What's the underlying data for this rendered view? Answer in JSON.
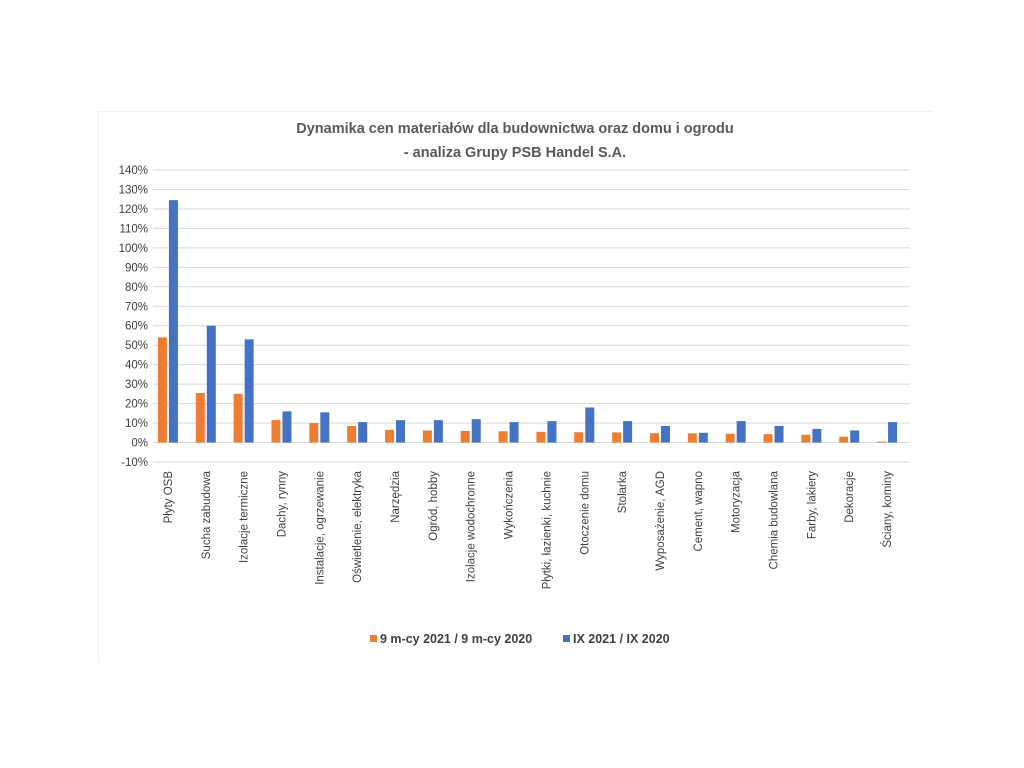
{
  "chart_data": {
    "type": "bar",
    "title": "Dynamika cen materiałów dla budownictwa oraz domu i ogrodu",
    "subtitle": "- analiza Grupy PSB Handel S.A.",
    "xlabel": "",
    "ylabel": "",
    "ylim": [
      -10,
      140
    ],
    "y_ticks": [
      140,
      130,
      120,
      110,
      100,
      90,
      80,
      70,
      60,
      50,
      40,
      30,
      20,
      10,
      0,
      -10
    ],
    "y_tick_labels": [
      "140%",
      "130%",
      "120%",
      "110%",
      "100%",
      "90%",
      "80%",
      "70%",
      "60%",
      "50%",
      "40%",
      "30%",
      "20%",
      "10%",
      "0%",
      "-10%"
    ],
    "grid": true,
    "legend_position": "bottom",
    "categories": [
      "Płyty OSB",
      "Sucha zabudowa",
      "Izolacje termiczne",
      "Dachy, rynny",
      "Instalacje, ogrzewanie",
      "Oświetlenie, elektryka",
      "Narzędzia",
      "Ogród, hobby",
      "Izolacje wodochronne",
      "Wykończenia",
      "Płytki, łazienki, kuchnie",
      "Otoczenie domu",
      "Stolarka",
      "Wyposażenie, AGD",
      "Cement, wapno",
      "Motoryzacja",
      "Chemia budowlana",
      "Farby, lakiery",
      "Dekoracje",
      "Ściany, kominy"
    ],
    "series": [
      {
        "name": "9 m-cy 2021 / 9 m-cy 2020",
        "color": "#ED7D31",
        "values": [
          54,
          25.5,
          25,
          11.5,
          10,
          8.5,
          6.5,
          6.2,
          6,
          5.8,
          5.5,
          5.3,
          5.2,
          4.8,
          4.7,
          4.5,
          4.3,
          4,
          3,
          0.5
        ]
      },
      {
        "name": "IX 2021 / IX 2020",
        "color": "#4472C4",
        "values": [
          124.5,
          60,
          53,
          16,
          15.5,
          10.5,
          11.5,
          11.5,
          12,
          10.5,
          11,
          18,
          11,
          8.5,
          5,
          11,
          8.5,
          7,
          6.2,
          10.5
        ]
      }
    ]
  }
}
